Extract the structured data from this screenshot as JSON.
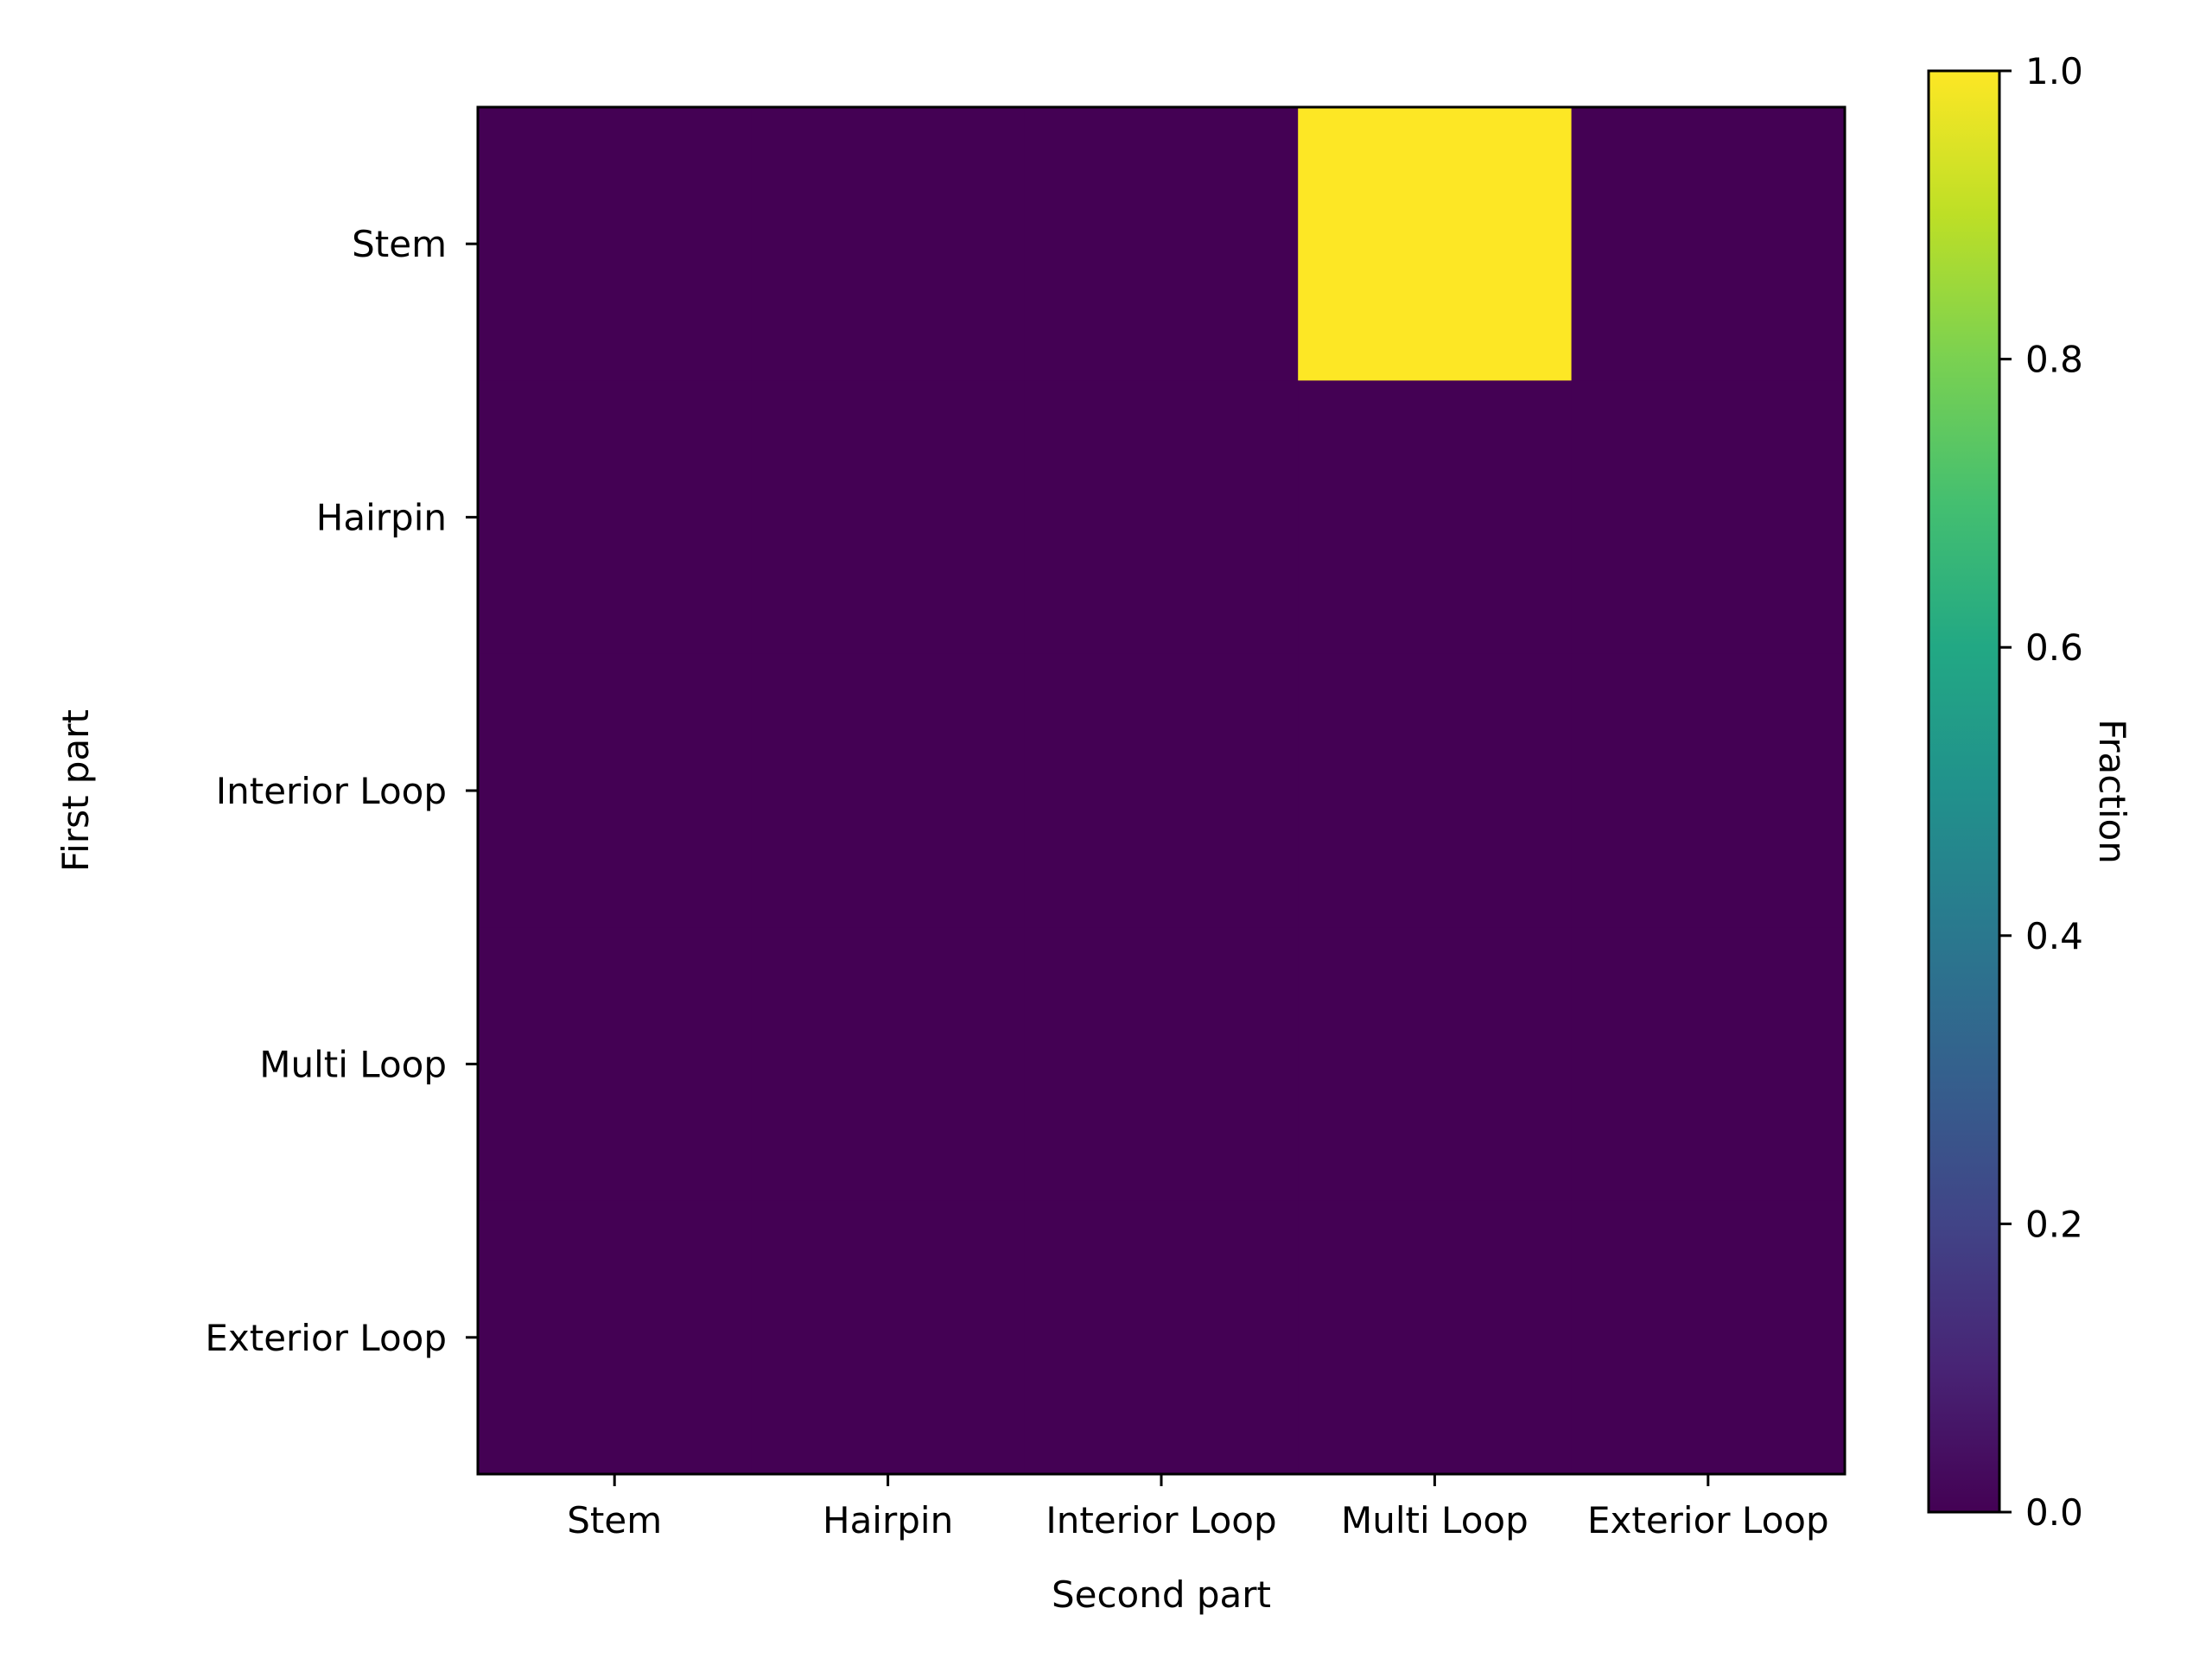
{
  "chart_data": {
    "type": "heatmap",
    "xlabel": "Second part",
    "ylabel": "First part",
    "x_categories": [
      "Stem",
      "Hairpin",
      "Interior Loop",
      "Multi Loop",
      "Exterior Loop"
    ],
    "y_categories": [
      "Stem",
      "Hairpin",
      "Interior Loop",
      "Multi Loop",
      "Exterior Loop"
    ],
    "values": [
      [
        0,
        0,
        0,
        1,
        0
      ],
      [
        0,
        0,
        0,
        0,
        0
      ],
      [
        0,
        0,
        0,
        0,
        0
      ],
      [
        0,
        0,
        0,
        0,
        0
      ],
      [
        0,
        0,
        0,
        0,
        0
      ]
    ],
    "colormap": "viridis",
    "low_color": "#440154",
    "high_color": "#fde725",
    "colorbar": {
      "label": "Fraction",
      "range": [
        0,
        1
      ],
      "ticks": [
        "0.0",
        "0.2",
        "0.4",
        "0.6",
        "0.8",
        "1.0"
      ]
    }
  }
}
